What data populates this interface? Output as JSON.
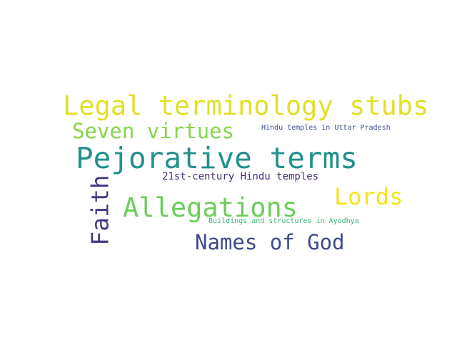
{
  "words": [
    {
      "text": "Legal terminology stubs",
      "color": "#e0e028"
    },
    {
      "text": "Seven virtues",
      "color": "#86d549"
    },
    {
      "text": "Hindu temples in Uttar Pradesh",
      "color": "#3b528b"
    },
    {
      "text": "Pejorative terms",
      "color": "#21918c"
    },
    {
      "text": "21st-century Hindu temples",
      "color": "#472d7b"
    },
    {
      "text": "Lords",
      "color": "#f2e51d"
    },
    {
      "text": "Allegations",
      "color": "#6ccd5a"
    },
    {
      "text": "Buildings and structures in Ayodhya",
      "color": "#35b779"
    },
    {
      "text": "Names of God",
      "color": "#3e4a89"
    },
    {
      "text": "Faith",
      "color": "#443a83"
    }
  ]
}
